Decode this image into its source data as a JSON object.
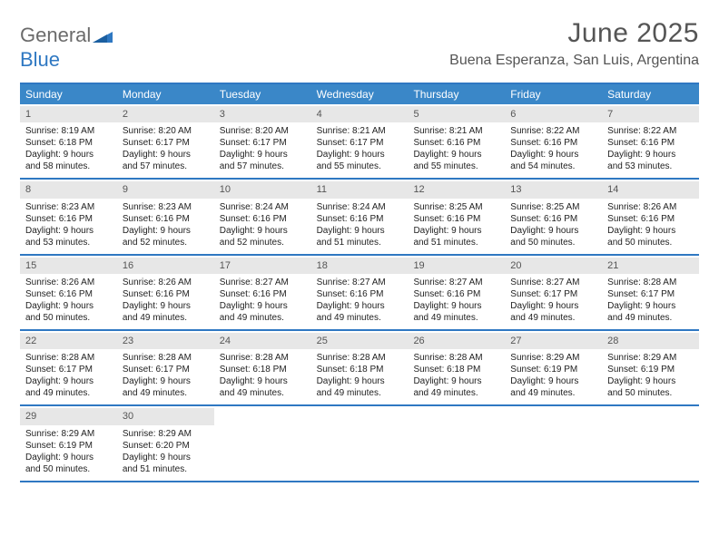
{
  "brand": {
    "word1": "General",
    "word2": "Blue"
  },
  "colors": {
    "accent": "#3a87c8",
    "rule": "#2f78c2",
    "daynum_bg": "#e7e7e7",
    "text": "#333333",
    "brand_gray": "#6b6b6b",
    "brand_blue": "#2f78c2",
    "background": "#ffffff"
  },
  "title": "June 2025",
  "location": "Buena Esperanza, San Luis, Argentina",
  "weekday_labels": [
    "Sunday",
    "Monday",
    "Tuesday",
    "Wednesday",
    "Thursday",
    "Friday",
    "Saturday"
  ],
  "weeks": [
    [
      {
        "n": "1",
        "sr": "Sunrise: 8:19 AM",
        "ss": "Sunset: 6:18 PM",
        "d1": "Daylight: 9 hours",
        "d2": "and 58 minutes."
      },
      {
        "n": "2",
        "sr": "Sunrise: 8:20 AM",
        "ss": "Sunset: 6:17 PM",
        "d1": "Daylight: 9 hours",
        "d2": "and 57 minutes."
      },
      {
        "n": "3",
        "sr": "Sunrise: 8:20 AM",
        "ss": "Sunset: 6:17 PM",
        "d1": "Daylight: 9 hours",
        "d2": "and 57 minutes."
      },
      {
        "n": "4",
        "sr": "Sunrise: 8:21 AM",
        "ss": "Sunset: 6:17 PM",
        "d1": "Daylight: 9 hours",
        "d2": "and 55 minutes."
      },
      {
        "n": "5",
        "sr": "Sunrise: 8:21 AM",
        "ss": "Sunset: 6:16 PM",
        "d1": "Daylight: 9 hours",
        "d2": "and 55 minutes."
      },
      {
        "n": "6",
        "sr": "Sunrise: 8:22 AM",
        "ss": "Sunset: 6:16 PM",
        "d1": "Daylight: 9 hours",
        "d2": "and 54 minutes."
      },
      {
        "n": "7",
        "sr": "Sunrise: 8:22 AM",
        "ss": "Sunset: 6:16 PM",
        "d1": "Daylight: 9 hours",
        "d2": "and 53 minutes."
      }
    ],
    [
      {
        "n": "8",
        "sr": "Sunrise: 8:23 AM",
        "ss": "Sunset: 6:16 PM",
        "d1": "Daylight: 9 hours",
        "d2": "and 53 minutes."
      },
      {
        "n": "9",
        "sr": "Sunrise: 8:23 AM",
        "ss": "Sunset: 6:16 PM",
        "d1": "Daylight: 9 hours",
        "d2": "and 52 minutes."
      },
      {
        "n": "10",
        "sr": "Sunrise: 8:24 AM",
        "ss": "Sunset: 6:16 PM",
        "d1": "Daylight: 9 hours",
        "d2": "and 52 minutes."
      },
      {
        "n": "11",
        "sr": "Sunrise: 8:24 AM",
        "ss": "Sunset: 6:16 PM",
        "d1": "Daylight: 9 hours",
        "d2": "and 51 minutes."
      },
      {
        "n": "12",
        "sr": "Sunrise: 8:25 AM",
        "ss": "Sunset: 6:16 PM",
        "d1": "Daylight: 9 hours",
        "d2": "and 51 minutes."
      },
      {
        "n": "13",
        "sr": "Sunrise: 8:25 AM",
        "ss": "Sunset: 6:16 PM",
        "d1": "Daylight: 9 hours",
        "d2": "and 50 minutes."
      },
      {
        "n": "14",
        "sr": "Sunrise: 8:26 AM",
        "ss": "Sunset: 6:16 PM",
        "d1": "Daylight: 9 hours",
        "d2": "and 50 minutes."
      }
    ],
    [
      {
        "n": "15",
        "sr": "Sunrise: 8:26 AM",
        "ss": "Sunset: 6:16 PM",
        "d1": "Daylight: 9 hours",
        "d2": "and 50 minutes."
      },
      {
        "n": "16",
        "sr": "Sunrise: 8:26 AM",
        "ss": "Sunset: 6:16 PM",
        "d1": "Daylight: 9 hours",
        "d2": "and 49 minutes."
      },
      {
        "n": "17",
        "sr": "Sunrise: 8:27 AM",
        "ss": "Sunset: 6:16 PM",
        "d1": "Daylight: 9 hours",
        "d2": "and 49 minutes."
      },
      {
        "n": "18",
        "sr": "Sunrise: 8:27 AM",
        "ss": "Sunset: 6:16 PM",
        "d1": "Daylight: 9 hours",
        "d2": "and 49 minutes."
      },
      {
        "n": "19",
        "sr": "Sunrise: 8:27 AM",
        "ss": "Sunset: 6:16 PM",
        "d1": "Daylight: 9 hours",
        "d2": "and 49 minutes."
      },
      {
        "n": "20",
        "sr": "Sunrise: 8:27 AM",
        "ss": "Sunset: 6:17 PM",
        "d1": "Daylight: 9 hours",
        "d2": "and 49 minutes."
      },
      {
        "n": "21",
        "sr": "Sunrise: 8:28 AM",
        "ss": "Sunset: 6:17 PM",
        "d1": "Daylight: 9 hours",
        "d2": "and 49 minutes."
      }
    ],
    [
      {
        "n": "22",
        "sr": "Sunrise: 8:28 AM",
        "ss": "Sunset: 6:17 PM",
        "d1": "Daylight: 9 hours",
        "d2": "and 49 minutes."
      },
      {
        "n": "23",
        "sr": "Sunrise: 8:28 AM",
        "ss": "Sunset: 6:17 PM",
        "d1": "Daylight: 9 hours",
        "d2": "and 49 minutes."
      },
      {
        "n": "24",
        "sr": "Sunrise: 8:28 AM",
        "ss": "Sunset: 6:18 PM",
        "d1": "Daylight: 9 hours",
        "d2": "and 49 minutes."
      },
      {
        "n": "25",
        "sr": "Sunrise: 8:28 AM",
        "ss": "Sunset: 6:18 PM",
        "d1": "Daylight: 9 hours",
        "d2": "and 49 minutes."
      },
      {
        "n": "26",
        "sr": "Sunrise: 8:28 AM",
        "ss": "Sunset: 6:18 PM",
        "d1": "Daylight: 9 hours",
        "d2": "and 49 minutes."
      },
      {
        "n": "27",
        "sr": "Sunrise: 8:29 AM",
        "ss": "Sunset: 6:19 PM",
        "d1": "Daylight: 9 hours",
        "d2": "and 49 minutes."
      },
      {
        "n": "28",
        "sr": "Sunrise: 8:29 AM",
        "ss": "Sunset: 6:19 PM",
        "d1": "Daylight: 9 hours",
        "d2": "and 50 minutes."
      }
    ],
    [
      {
        "n": "29",
        "sr": "Sunrise: 8:29 AM",
        "ss": "Sunset: 6:19 PM",
        "d1": "Daylight: 9 hours",
        "d2": "and 50 minutes."
      },
      {
        "n": "30",
        "sr": "Sunrise: 8:29 AM",
        "ss": "Sunset: 6:20 PM",
        "d1": "Daylight: 9 hours",
        "d2": "and 51 minutes."
      },
      {
        "empty": true
      },
      {
        "empty": true
      },
      {
        "empty": true
      },
      {
        "empty": true
      },
      {
        "empty": true
      }
    ]
  ]
}
